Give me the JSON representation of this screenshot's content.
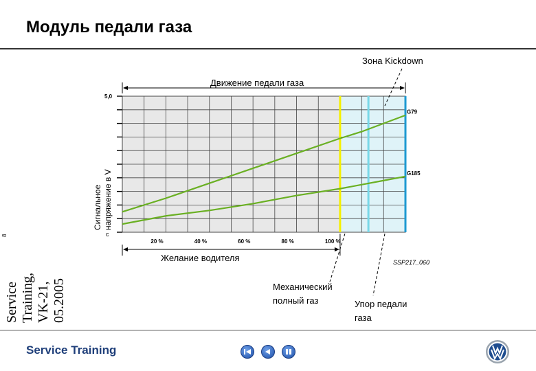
{
  "header": {
    "title": "Модуль педали газа"
  },
  "side": {
    "text": "Service\nTraining,\nVK-21,\n05.2005",
    "page": "8"
  },
  "footer": {
    "brand": "Service Training"
  },
  "colors": {
    "line": "#6ab023",
    "yellow": "#f5f000",
    "cyan_mid": "#78d8e8",
    "cyan_end": "#1e9ad2",
    "kickdown_zone": "#dff3f8",
    "brand_blue": "#1f3f7a"
  },
  "icons": [
    "first-page-icon",
    "previous-page-icon",
    "pause-icon",
    "volkswagen-logo-icon"
  ],
  "chart_data": {
    "type": "line",
    "y_axis_label": "Сигнальное напряжение в V",
    "y_unit_mark": "с",
    "y_tick_label": "5,0",
    "ylim": [
      0,
      5.0
    ],
    "x_tick_labels": [
      "20 %",
      "40 %",
      "60 %",
      "80 %",
      "100 %"
    ],
    "xlim": [
      0,
      130
    ],
    "x": [
      0,
      20,
      40,
      60,
      80,
      100,
      110,
      120,
      130
    ],
    "series": [
      {
        "name": "G79",
        "values": [
          0.75,
          1.25,
          1.8,
          2.35,
          2.9,
          3.45,
          3.7,
          4.0,
          4.3
        ]
      },
      {
        "name": "G185",
        "values": [
          0.3,
          0.6,
          0.8,
          1.05,
          1.35,
          1.6,
          1.75,
          1.9,
          2.05
        ]
      }
    ],
    "vertical_markers": [
      {
        "x": 100,
        "color": "#f5f000"
      },
      {
        "x": 113,
        "color": "#78d8e8"
      },
      {
        "x": 130,
        "color": "#1e9ad2"
      }
    ],
    "shaded_region": {
      "x_from": 100,
      "x_to": 130,
      "color": "#dff3f8"
    },
    "annotations": {
      "pedal_travel": "Движение педали газа",
      "driver_demand": "Желание водителя",
      "kickdown_zone": "Зона Kickdown",
      "mechanical_full_throttle": "Механический полный газ",
      "pedal_stop": "Упор педали газа",
      "figure_code": "SSP217_060"
    },
    "grid": true
  }
}
